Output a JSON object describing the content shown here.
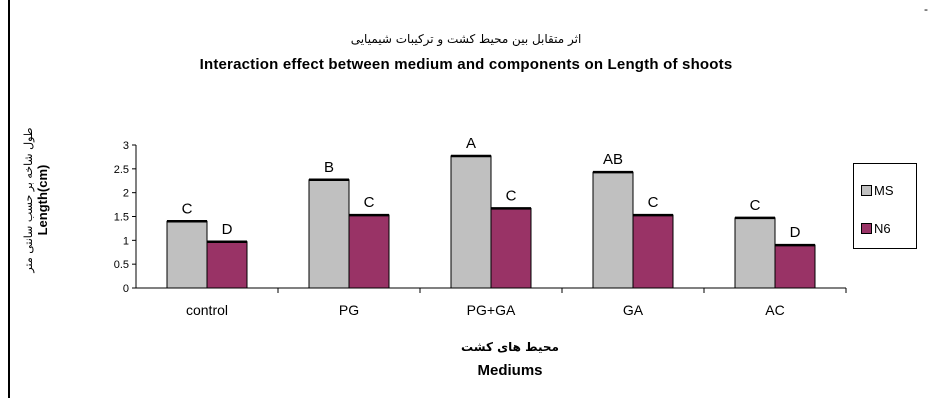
{
  "chart_data": {
    "type": "bar",
    "title_fa": "اثر متقابل بین محیط کشت و ترکیبات شیمیایی",
    "title": "Interaction effect between medium and components on Length of shoots",
    "xlabel_fa": "محیط های کشت",
    "xlabel": "Mediums",
    "ylabel_fa": "طول شاخه بر حسب سانتی متر",
    "ylabel": "Length(cm)",
    "categories": [
      "control",
      "PG",
      "PG+GA",
      "GA",
      "AC"
    ],
    "ylim": [
      0,
      3
    ],
    "yticks": [
      0,
      0.5,
      1,
      1.5,
      2,
      2.5,
      3
    ],
    "ytick_labels": [
      "0",
      "0.5",
      "1",
      "1.5",
      "2",
      "2.5",
      "3"
    ],
    "series": [
      {
        "name": "MS",
        "color": "#c0c0c0",
        "values": [
          1.4,
          2.27,
          2.77,
          2.43,
          1.47
        ],
        "letters": [
          "C",
          "B",
          "A",
          "AB",
          "C"
        ]
      },
      {
        "name": "N6",
        "color": "#993366",
        "values": [
          0.97,
          1.53,
          1.67,
          1.53,
          0.9
        ],
        "letters": [
          "D",
          "C",
          "C",
          "C",
          "D"
        ]
      }
    ],
    "legend_position": "right"
  },
  "corner_mark": "-"
}
